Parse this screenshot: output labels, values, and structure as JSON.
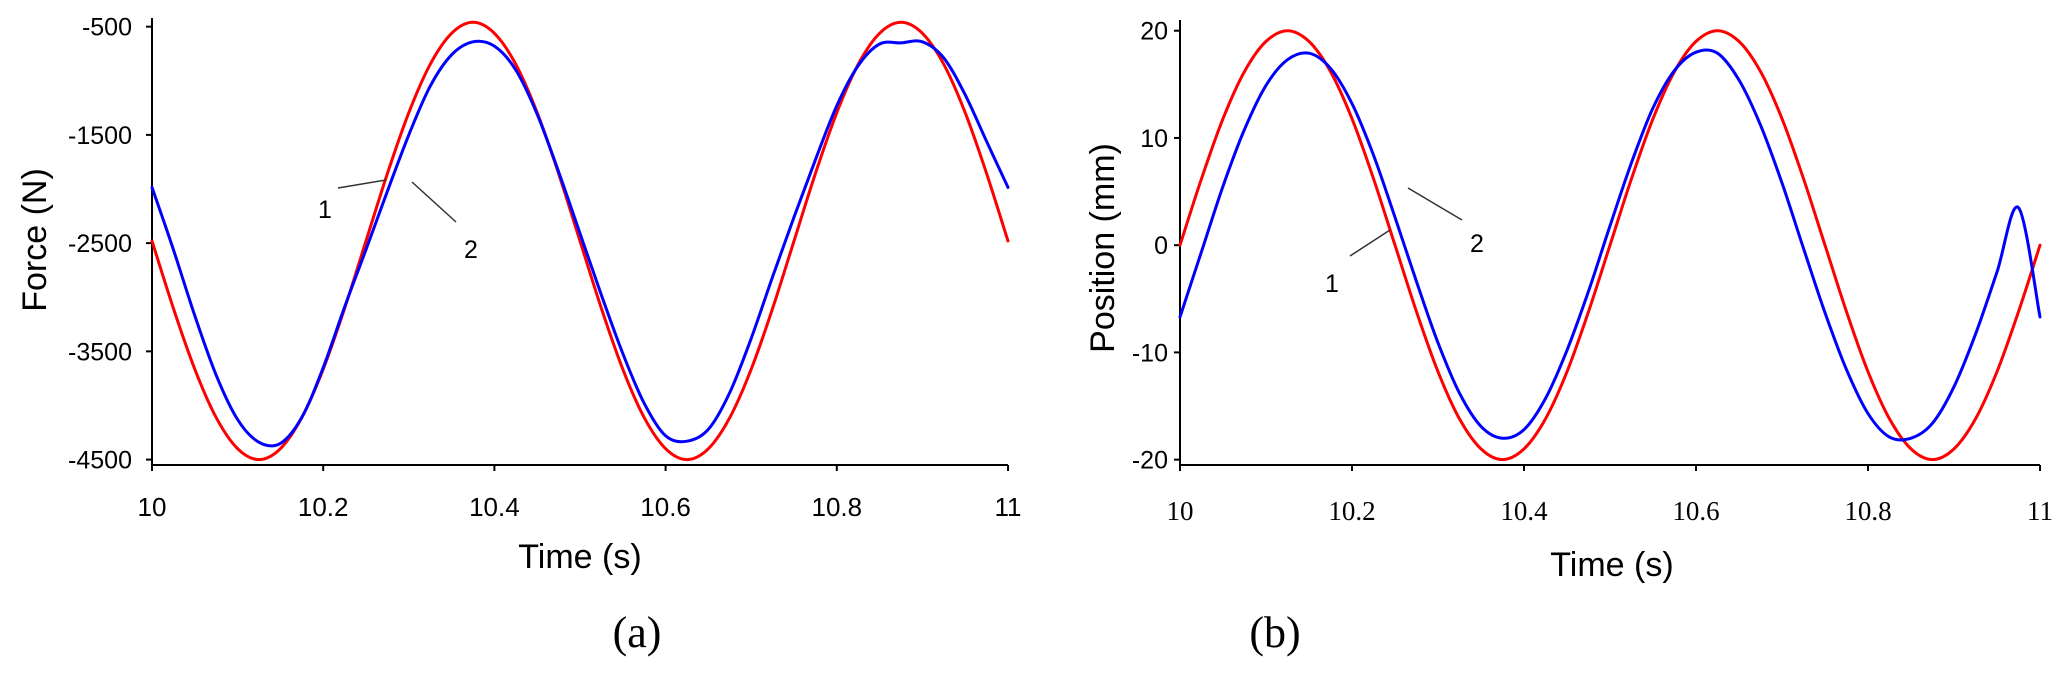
{
  "chart_data": [
    {
      "type": "line",
      "panel_label": "(a)",
      "title": "",
      "xlabel": "Time (s)",
      "ylabel": "Force (N)",
      "xlim": [
        10,
        11
      ],
      "ylim": [
        -4550,
        -420
      ],
      "x_ticks": [
        10,
        10.2,
        10.4,
        10.6,
        10.8,
        11
      ],
      "x_tick_labels": [
        "10",
        "10.2",
        "10.4",
        "10.6",
        "10.8",
        "11"
      ],
      "y_ticks": [
        -500,
        -1500,
        -2500,
        -3500,
        -4500
      ],
      "y_tick_labels": [
        "-500",
        "-1500",
        "-2500",
        "-3500",
        "-4500"
      ],
      "grid": false,
      "x": [
        10.0,
        10.025,
        10.05,
        10.075,
        10.1,
        10.125,
        10.15,
        10.175,
        10.2,
        10.225,
        10.25,
        10.275,
        10.3,
        10.325,
        10.35,
        10.375,
        10.4,
        10.425,
        10.45,
        10.475,
        10.5,
        10.525,
        10.55,
        10.575,
        10.6,
        10.625,
        10.65,
        10.675,
        10.7,
        10.725,
        10.75,
        10.775,
        10.8,
        10.825,
        10.85,
        10.875,
        10.9,
        10.925,
        10.95,
        10.975,
        11.0
      ],
      "series": [
        {
          "name": "1",
          "color": "#ff0000",
          "values": [
            -2480,
            -3103,
            -3665,
            -4112,
            -4399,
            -4500,
            -4399,
            -4112,
            -3665,
            -3103,
            -2480,
            -1857,
            -1295,
            -848,
            -561,
            -460,
            -561,
            -848,
            -1295,
            -1857,
            -2480,
            -3103,
            -3665,
            -4112,
            -4399,
            -4500,
            -4399,
            -4112,
            -3665,
            -3103,
            -2480,
            -1857,
            -1295,
            -848,
            -561,
            -460,
            -561,
            -848,
            -1295,
            -1857,
            -2480
          ]
        },
        {
          "name": "2",
          "color": "#0000ff",
          "values": [
            -1985,
            -2560,
            -3170,
            -3720,
            -4130,
            -4340,
            -4350,
            -4110,
            -3650,
            -3090,
            -2560,
            -2020,
            -1500,
            -1050,
            -760,
            -640,
            -680,
            -900,
            -1310,
            -1840,
            -2410,
            -2980,
            -3520,
            -3980,
            -4280,
            -4330,
            -4220,
            -3880,
            -3380,
            -2810,
            -2260,
            -1730,
            -1230,
            -860,
            -660,
            -650,
            -640,
            -790,
            -1130,
            -1560,
            -1985
          ]
        }
      ],
      "annotations": [
        {
          "text": "1",
          "points_to_series": "1"
        },
        {
          "text": "2",
          "points_to_series": "2"
        }
      ]
    },
    {
      "type": "line",
      "panel_label": "(b)",
      "title": "",
      "xlabel": "Time (s)",
      "ylabel": "Position (mm)",
      "xlim": [
        10,
        11
      ],
      "ylim": [
        -20.5,
        21
      ],
      "x_ticks": [
        10,
        10.2,
        10.4,
        10.6,
        10.8,
        11
      ],
      "x_tick_labels": [
        "10",
        "10.2",
        "10.4",
        "10.6",
        "10.8",
        "11"
      ],
      "y_ticks": [
        20,
        10,
        0,
        -10,
        -20
      ],
      "y_tick_labels": [
        "20",
        "10",
        "0",
        "-10",
        "-20"
      ],
      "grid": false,
      "x": [
        10.0,
        10.025,
        10.05,
        10.075,
        10.1,
        10.125,
        10.15,
        10.175,
        10.2,
        10.225,
        10.25,
        10.275,
        10.3,
        10.325,
        10.35,
        10.375,
        10.4,
        10.425,
        10.45,
        10.475,
        10.5,
        10.525,
        10.55,
        10.575,
        10.6,
        10.625,
        10.65,
        10.675,
        10.7,
        10.725,
        10.75,
        10.775,
        10.8,
        10.825,
        10.85,
        10.875,
        10.9,
        10.925,
        10.95,
        10.975,
        11.0
      ],
      "series": [
        {
          "name": "1",
          "color": "#ff0000",
          "values": [
            0,
            6.2,
            11.8,
            16.2,
            19.0,
            20.0,
            19.0,
            16.2,
            11.8,
            6.2,
            0,
            -6.2,
            -11.8,
            -16.2,
            -19.0,
            -20.0,
            -19.0,
            -16.2,
            -11.8,
            -6.2,
            0,
            6.2,
            11.8,
            16.2,
            19.0,
            20.0,
            19.0,
            16.2,
            11.8,
            6.2,
            0,
            -6.2,
            -11.8,
            -16.2,
            -19.0,
            -20.0,
            -19.0,
            -16.2,
            -11.8,
            -6.2,
            0
          ]
        },
        {
          "name": "2",
          "color": "#0000ff",
          "values": [
            -6.7,
            -0.6,
            5.5,
            10.8,
            14.9,
            17.3,
            17.9,
            16.5,
            13.2,
            8.4,
            2.6,
            -3.4,
            -9.1,
            -13.8,
            -16.9,
            -18.0,
            -17.2,
            -14.3,
            -9.8,
            -4.3,
            1.8,
            7.7,
            12.8,
            16.3,
            18.0,
            17.9,
            15.4,
            11.2,
            5.8,
            -0.3,
            -6.3,
            -11.6,
            -15.7,
            -17.9,
            -18.0,
            -16.6,
            -13.2,
            -8.3,
            -2.5,
            3.5,
            -6.7
          ]
        }
      ],
      "annotations": [
        {
          "text": "1",
          "points_to_series": "1"
        },
        {
          "text": "2",
          "points_to_series": "2"
        }
      ]
    }
  ]
}
